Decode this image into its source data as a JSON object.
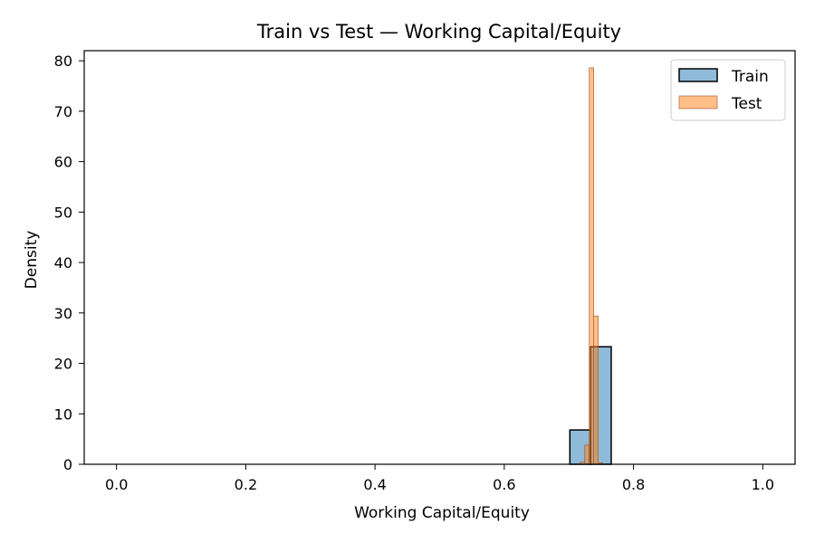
{
  "chart_data": {
    "type": "bar",
    "title": "Train vs Test —  Working Capital/Equity",
    "xlabel": "Working Capital/Equity",
    "ylabel": "Density",
    "xlim": [
      -0.05,
      1.05
    ],
    "ylim": [
      0,
      82
    ],
    "xticks": [
      0.0,
      0.2,
      0.4,
      0.6,
      0.8,
      1.0
    ],
    "xtick_labels": [
      "0.0",
      "0.2",
      "0.4",
      "0.6",
      "0.8",
      "1.0"
    ],
    "yticks": [
      0,
      10,
      20,
      30,
      40,
      50,
      60,
      70,
      80
    ],
    "ytick_labels": [
      "0",
      "10",
      "20",
      "30",
      "40",
      "50",
      "60",
      "70",
      "80"
    ],
    "grid": false,
    "legend_position": "top-right",
    "series": [
      {
        "name": "Train",
        "color": "#1f77b4",
        "edge_color": "#000000",
        "bins": [
          {
            "x0": 0.7015,
            "x1": 0.7335,
            "value": 6.8
          },
          {
            "x0": 0.7335,
            "x1": 0.7655,
            "value": 23.3
          }
        ]
      },
      {
        "name": "Test",
        "color": "#ff7f0e",
        "edge_color": "#a0522d",
        "bins": [
          {
            "x0": 0.7175,
            "x1": 0.7245,
            "value": 0.4
          },
          {
            "x0": 0.7245,
            "x1": 0.7315,
            "value": 3.8
          },
          {
            "x0": 0.7315,
            "x1": 0.7385,
            "value": 78.6
          },
          {
            "x0": 0.7385,
            "x1": 0.7455,
            "value": 29.4
          },
          {
            "x0": 0.7455,
            "x1": 0.7525,
            "value": 0.3
          }
        ]
      }
    ]
  }
}
